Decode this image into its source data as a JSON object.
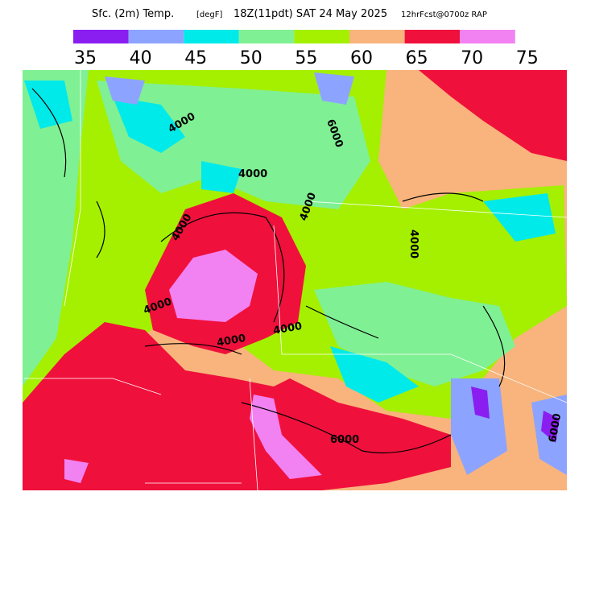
{
  "header": {
    "field": "Sfc. (2m) Temp.",
    "units": "[degF]",
    "valid": "18Z(11pdt) SAT 24 May 2025",
    "run": "12hrFcst@0700z RAP"
  },
  "colorbar": {
    "colors": [
      "#8a1ef0",
      "#8ca4ff",
      "#00eaea",
      "#80f094",
      "#a4f000",
      "#f8b47c",
      "#f0103c",
      "#f282f2"
    ],
    "ticks": [
      35,
      40,
      45,
      50,
      55,
      60,
      65,
      70,
      75
    ]
  },
  "contour_labels": [
    "4000",
    "4000",
    "4000",
    "6000",
    "4000",
    "4000",
    "4000",
    "4000",
    "6000",
    "4000",
    "6000"
  ]
}
